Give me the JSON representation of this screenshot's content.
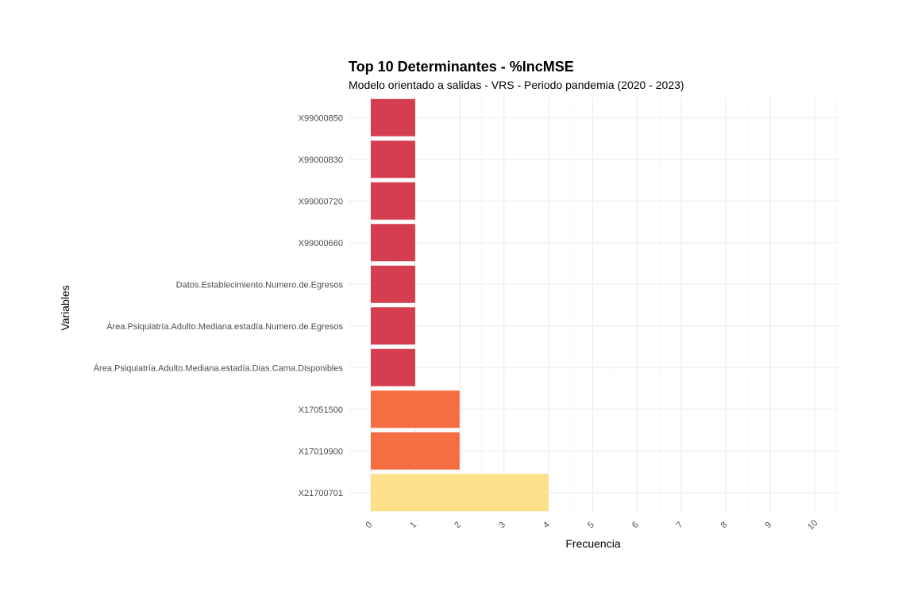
{
  "chart_data": {
    "type": "bar",
    "orientation": "horizontal",
    "title": "Top 10 Determinantes - %IncMSE",
    "subtitle": "Modelo orientado a salidas - VRS - Periodo pandemia (2020 - 2023)",
    "xlabel": "Frecuencia",
    "ylabel": "Variables",
    "xlim": [
      0,
      10
    ],
    "x_ticks": [
      "0",
      "1",
      "2",
      "3",
      "4",
      "5",
      "6",
      "7",
      "8",
      "9",
      "10"
    ],
    "grid": true,
    "legend": "none",
    "categories": [
      "X99000850",
      "X99000830",
      "X99000720",
      "X99000660",
      "Datos.Establecimiento.Numero.de.Egresos",
      "Área.Psiquiatría.Adulto.Mediana.estadía.Numero.de.Egresos",
      "Área.Psiquiatría.Adulto.Mediana.estadía.Dias.Cama.Disponibles",
      "X17051500",
      "X17010900",
      "X21700701"
    ],
    "values": [
      1,
      1,
      1,
      1,
      1,
      1,
      1,
      2,
      2,
      4
    ],
    "colors": {
      "1": "#d53e4f",
      "2": "#f46d43",
      "4": "#fee08b"
    }
  }
}
